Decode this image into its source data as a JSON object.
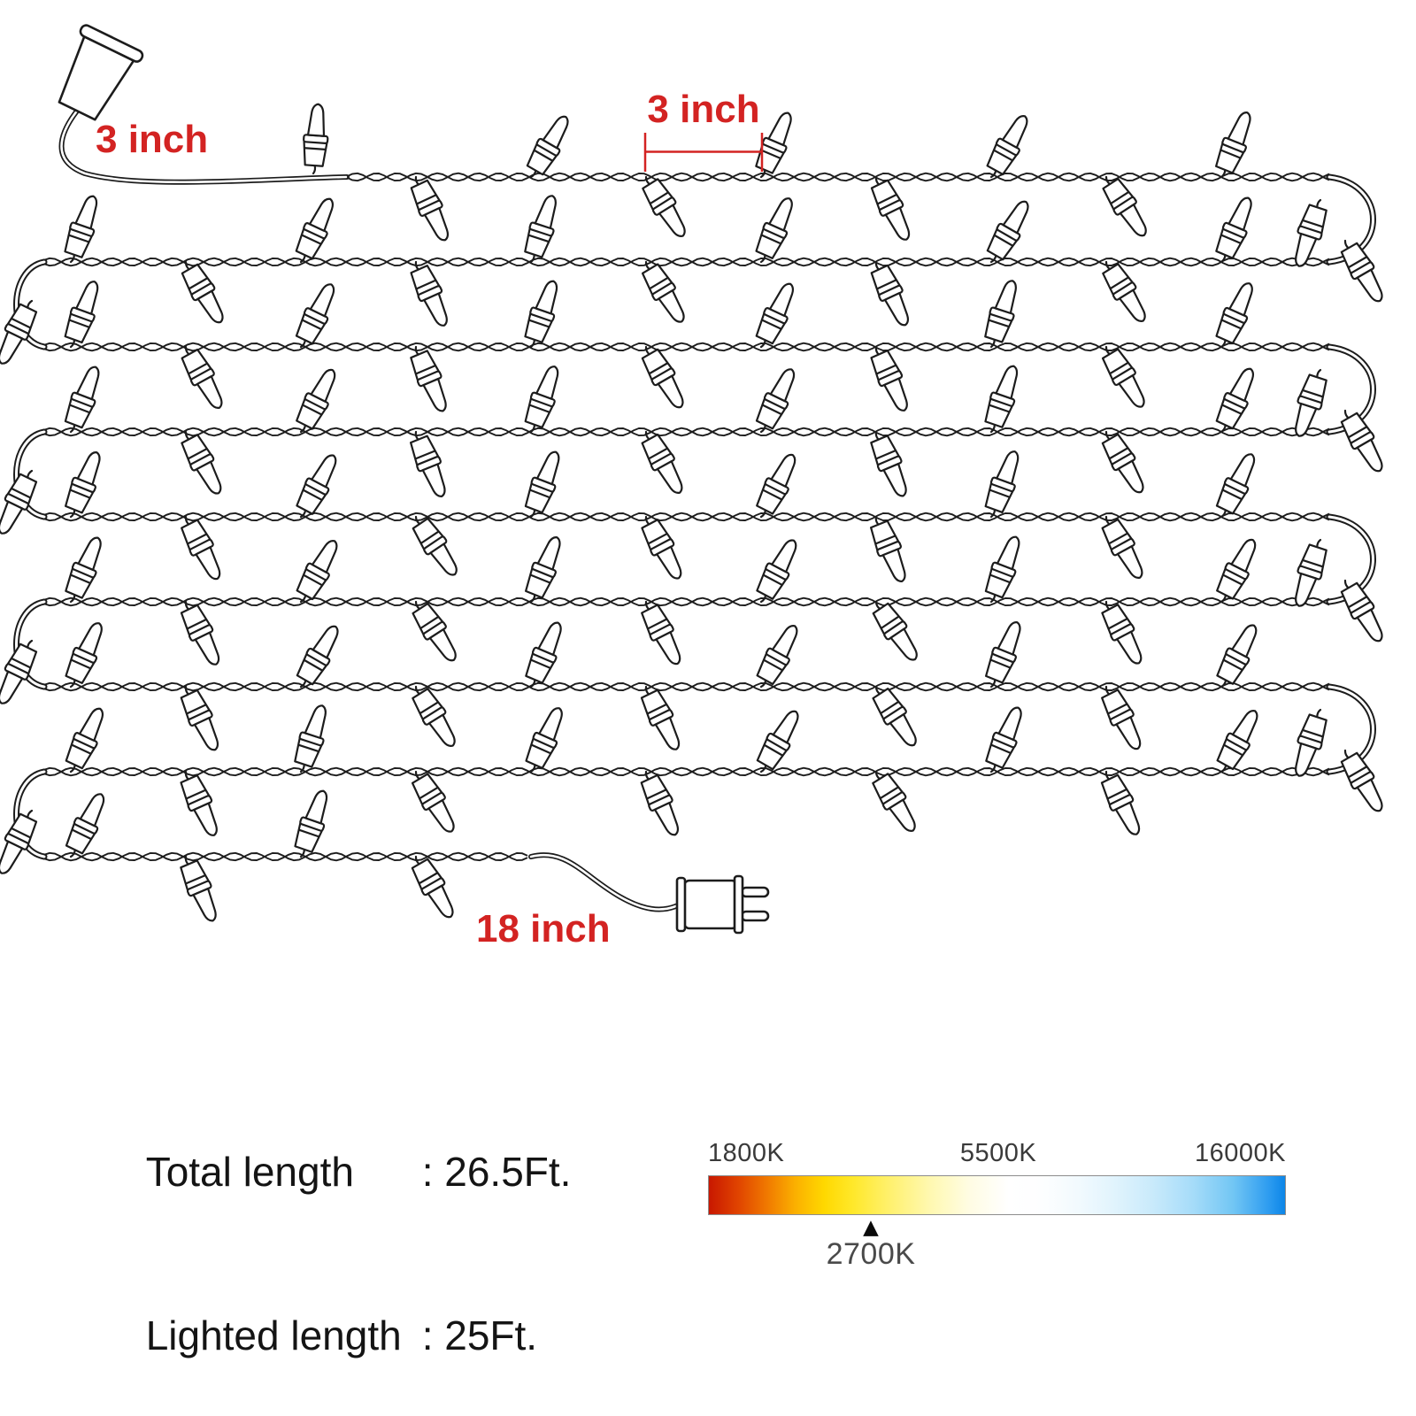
{
  "page_title": "String light dimensions diagram",
  "annotations": {
    "lead_top_label": "3 inch",
    "bulb_spacing_label": "3 inch",
    "lead_bottom_label": "18 inch"
  },
  "specs": {
    "rows": [
      {
        "label": "Total length",
        "value": ": 26.5Ft."
      },
      {
        "label": "Lighted length",
        "value": ": 25Ft."
      }
    ]
  },
  "temperature_scale": {
    "left_label": "1800K",
    "center_label": "5500K",
    "right_label": "16000K",
    "marker_icon": "▲",
    "marker_label": "2700K",
    "gradient_left_color": "#c81800",
    "gradient_center_color": "#ffffff",
    "gradient_right_color": "#0c86e8"
  },
  "colors": {
    "annotation_red": "#d32322",
    "wire": "#1c1c1c",
    "text_dark": "#141414",
    "scale_label_gray": "#3a3a3a"
  }
}
